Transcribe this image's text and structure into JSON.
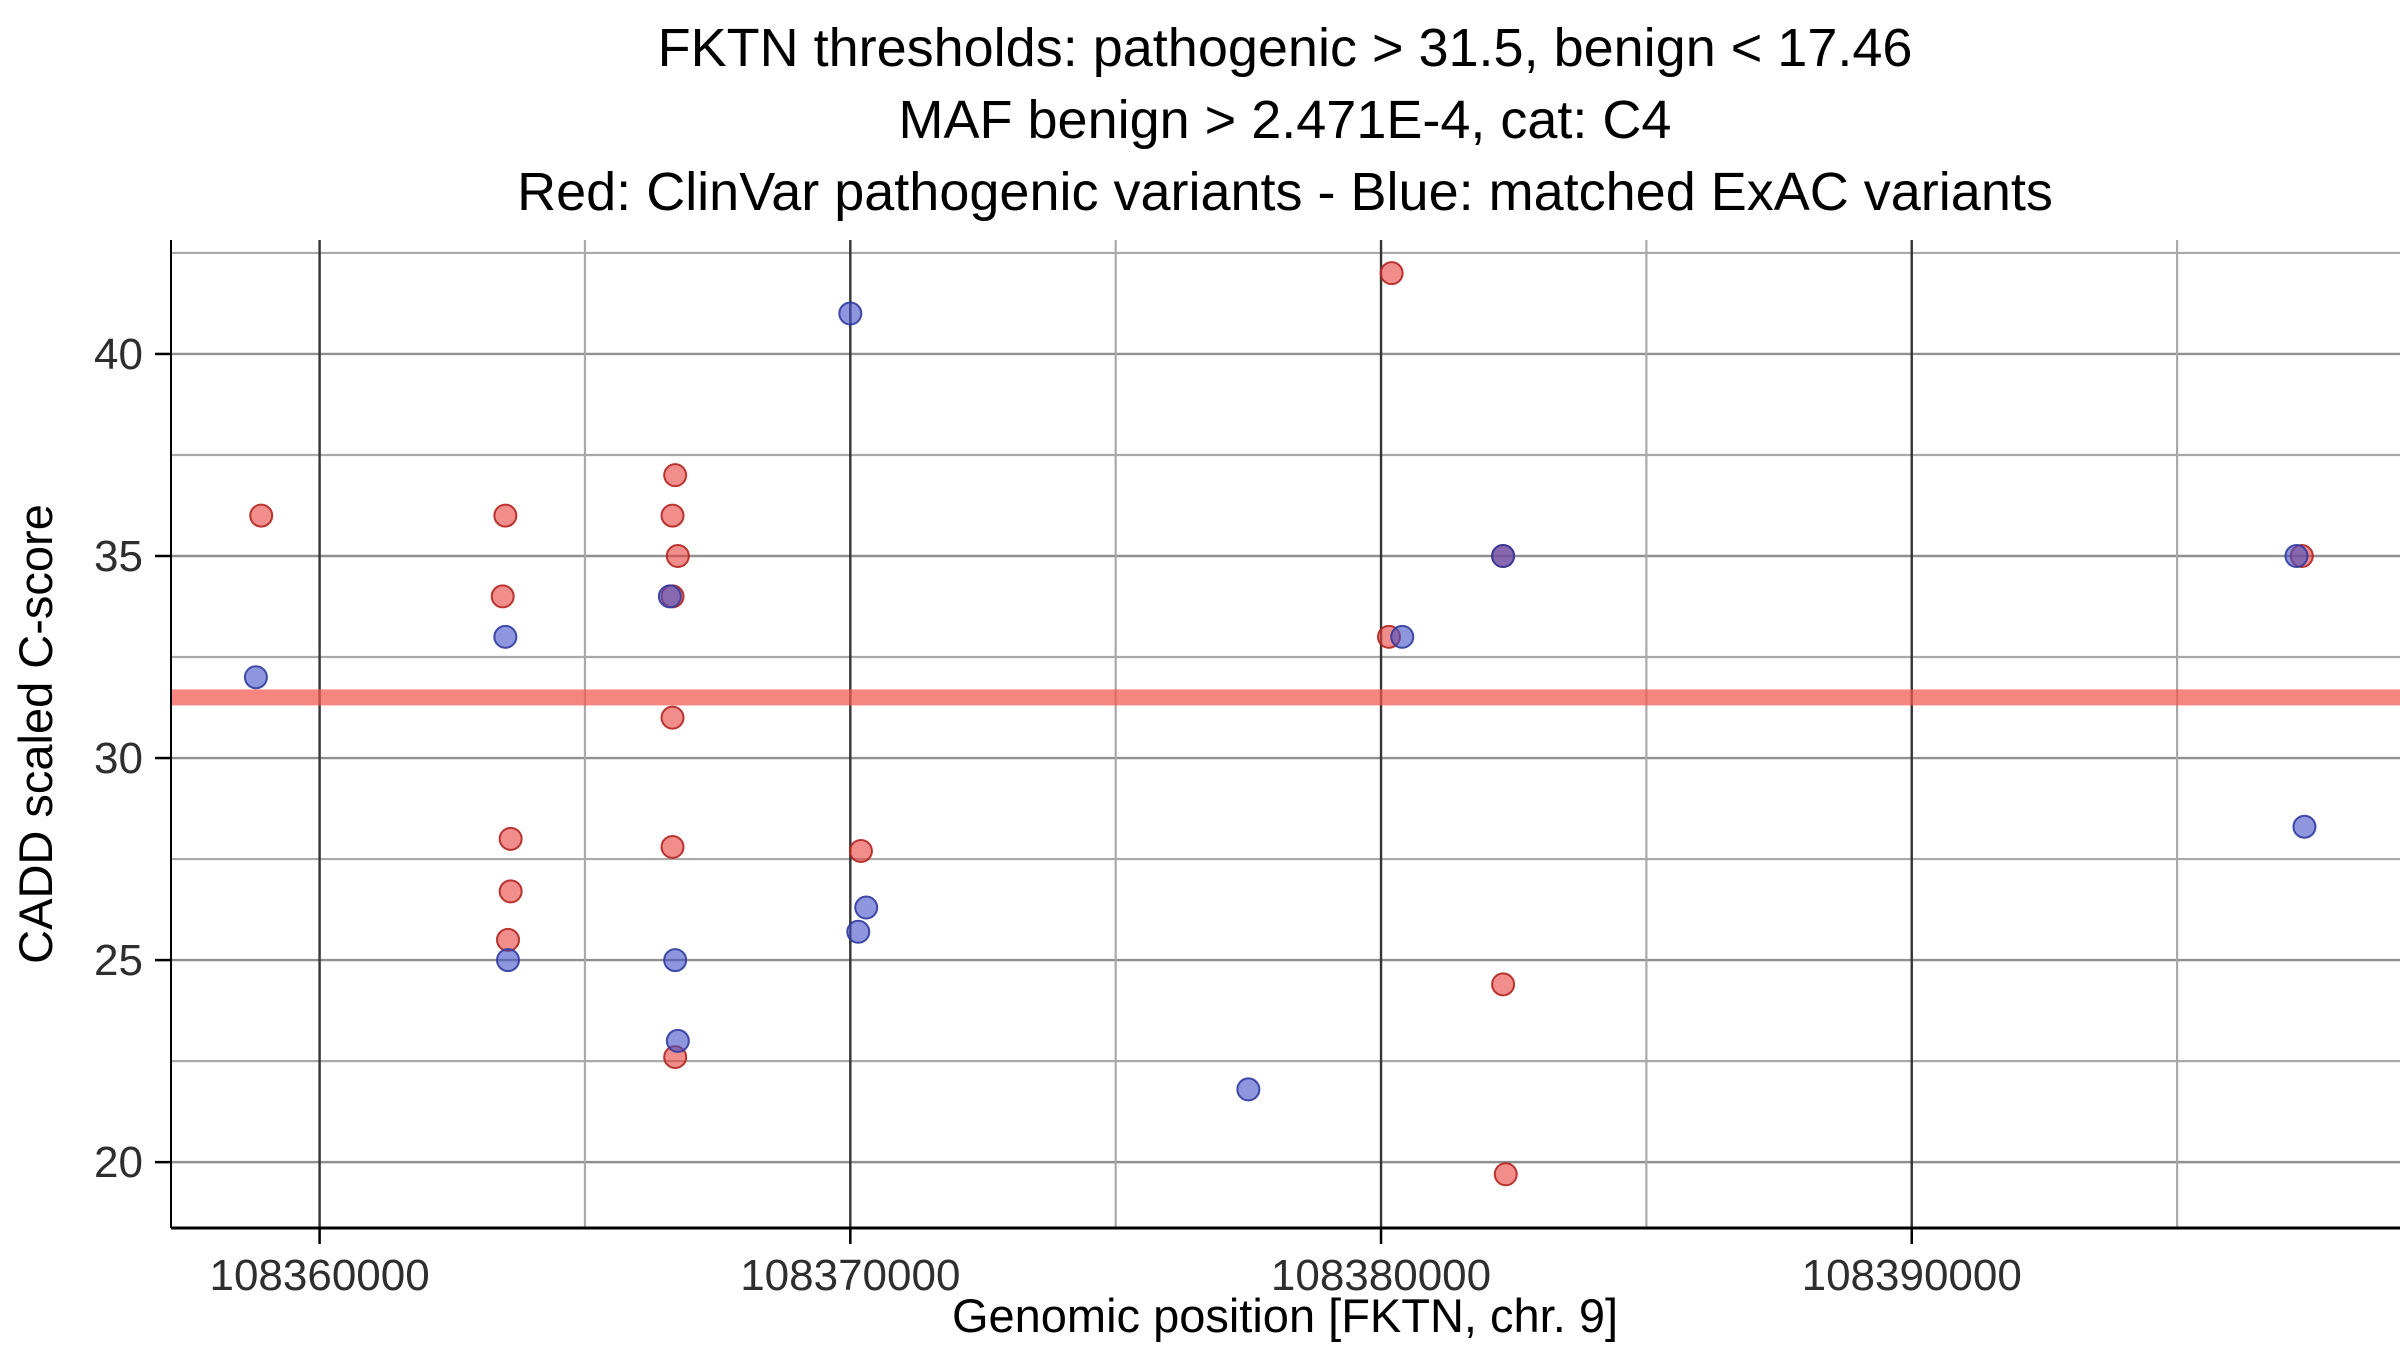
{
  "title": {
    "line1": "FKTN thresholds: pathogenic > 31.5, benign < 17.46",
    "line2": "MAF benign > 2.471E-4, cat: C4",
    "line3": "Red: ClinVar pathogenic variants - Blue: matched ExAC variants"
  },
  "chart_data": {
    "type": "scatter",
    "xlabel": "Genomic position [FKTN, chr. 9]",
    "ylabel": "CADD scaled C-score",
    "xlim": [
      108357200,
      108399200
    ],
    "ylim": [
      18.37,
      42.82
    ],
    "x_ticks": [
      108360000,
      108370000,
      108380000,
      108390000
    ],
    "x_tick_labels": [
      "108360000",
      "108370000",
      "108380000",
      "108390000"
    ],
    "x_minor_gridlines": [
      108365000,
      108375000,
      108385000,
      108395000
    ],
    "y_ticks": [
      20,
      25,
      30,
      35,
      40
    ],
    "y_tick_labels": [
      "20",
      "25",
      "30",
      "35",
      "40"
    ],
    "y_minor_gridlines": [
      22.5,
      27.5,
      32.5,
      37.5,
      42.5
    ],
    "grid": true,
    "legend_position": "none (encoded in title text)",
    "threshold_line": {
      "label": "pathogenic threshold",
      "value": 31.5,
      "color": "#F2564D",
      "opacity": 0.72,
      "thickness_px": 16
    },
    "style": {
      "grid_minor_color": "#a9a9a9",
      "grid_major_h_color": "#8f8f8f",
      "grid_major_v_color": "#353535",
      "axis_color": "#000000",
      "point_radius": 11,
      "point_opacity": 0.6
    },
    "series": [
      {
        "name": "ClinVar pathogenic variants",
        "color_fill": "#E8413C",
        "color_stroke": "#B3231F",
        "points": [
          [
            108358900,
            36
          ],
          [
            108363500,
            36
          ],
          [
            108363450,
            34
          ],
          [
            108363600,
            28
          ],
          [
            108363600,
            26.7
          ],
          [
            108363550,
            25.5
          ],
          [
            108366700,
            37
          ],
          [
            108366650,
            36
          ],
          [
            108366750,
            35
          ],
          [
            108366650,
            34
          ],
          [
            108366650,
            31
          ],
          [
            108366650,
            27.8
          ],
          [
            108366700,
            22.6
          ],
          [
            108370200,
            27.7
          ],
          [
            108380200,
            42
          ],
          [
            108380150,
            33
          ],
          [
            108382300,
            35
          ],
          [
            108382300,
            24.4
          ],
          [
            108382350,
            19.7
          ],
          [
            108397350,
            35
          ]
        ]
      },
      {
        "name": "matched ExAC variants",
        "color_fill": "#4350C8",
        "color_stroke": "#2F3A9E",
        "points": [
          [
            108358800,
            32
          ],
          [
            108363500,
            33
          ],
          [
            108363550,
            25
          ],
          [
            108366600,
            34
          ],
          [
            108366700,
            25
          ],
          [
            108366750,
            23
          ],
          [
            108370000,
            41
          ],
          [
            108370300,
            26.3
          ],
          [
            108370150,
            25.7
          ],
          [
            108377500,
            21.8
          ],
          [
            108380400,
            33
          ],
          [
            108382300,
            35
          ],
          [
            108397250,
            35
          ],
          [
            108397400,
            28.3
          ]
        ]
      }
    ]
  }
}
